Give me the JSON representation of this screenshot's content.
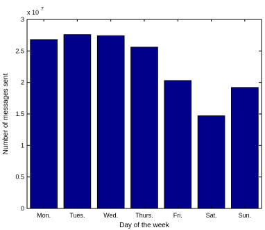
{
  "chart_data": {
    "type": "bar",
    "categories": [
      "Mon.",
      "Tues.",
      "Wed.",
      "Thurs.",
      "Fri.",
      "Sat.",
      "Sun."
    ],
    "values": [
      26800000,
      27600000,
      27400000,
      25600000,
      20300000,
      14700000,
      19200000
    ],
    "xlabel": "Day of the week",
    "ylabel": "Number of messages sent",
    "ylim": [
      0,
      30000000
    ],
    "yticks": [
      0,
      0.5,
      1,
      1.5,
      2,
      2.5,
      3
    ],
    "ytick_labels": [
      "0",
      "0.5",
      "1",
      "1.5",
      "2",
      "2.5",
      "3"
    ],
    "y_multiplier": {
      "base": "x 10",
      "exponent": "7"
    },
    "grid": false,
    "bar_color": "#00008B",
    "axis_color": "#000000"
  }
}
